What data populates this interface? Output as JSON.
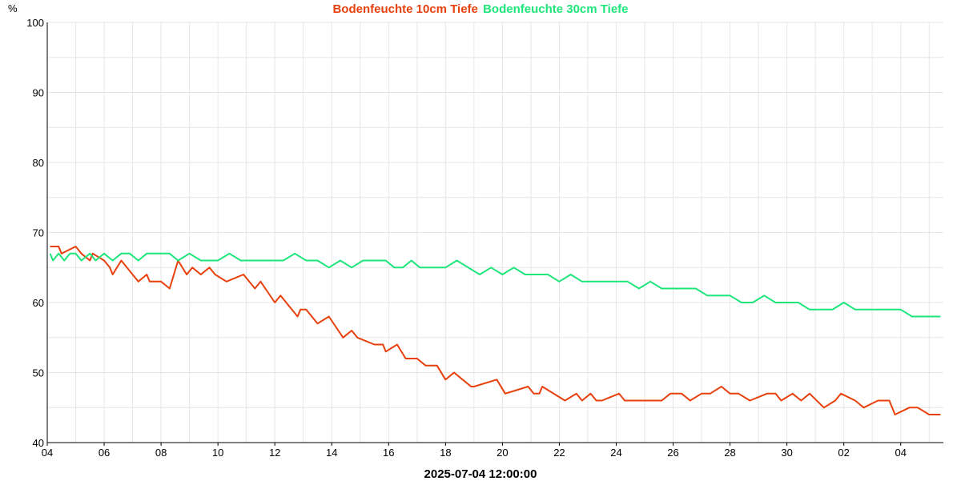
{
  "chart_data": {
    "type": "line",
    "y_unit": "%",
    "ylim": [
      40,
      100
    ],
    "yticks": [
      40,
      50,
      60,
      70,
      80,
      90,
      100
    ],
    "xlim": [
      0,
      31.5
    ],
    "x_tick_labels": [
      "04",
      "06",
      "08",
      "10",
      "12",
      "14",
      "16",
      "18",
      "20",
      "22",
      "24",
      "26",
      "28",
      "30",
      "02",
      "04"
    ],
    "x_axis_title": "2025-07-04 12:00:00",
    "grid": true,
    "legend_position": "top-center",
    "series": [
      {
        "name": "Bodenfeuchte 10cm Tiefe",
        "color": "#e8400c",
        "x": [
          0.1,
          0.4,
          0.5,
          1.0,
          1.2,
          1.5,
          1.6,
          2.0,
          2.2,
          2.3,
          2.6,
          3.2,
          3.5,
          3.6,
          4.0,
          4.3,
          4.6,
          4.9,
          5.1,
          5.4,
          5.7,
          5.9,
          6.3,
          6.9,
          7.1,
          7.3,
          7.5,
          8.0,
          8.2,
          8.8,
          8.9,
          9.1,
          9.5,
          9.9,
          10.4,
          10.7,
          10.9,
          11.5,
          11.8,
          11.9,
          12.3,
          12.6,
          13.0,
          13.3,
          13.7,
          14.0,
          14.3,
          14.6,
          14.9,
          15.0,
          15.8,
          16.1,
          16.9,
          17.1,
          17.3,
          17.4,
          18.2,
          18.6,
          18.8,
          19.1,
          19.3,
          19.5,
          20.1,
          20.3,
          21.1,
          21.6,
          21.9,
          22.3,
          22.6,
          23.0,
          23.3,
          23.7,
          24.0,
          24.3,
          24.7,
          25.3,
          25.6,
          25.8,
          26.2,
          26.5,
          26.8,
          27.3,
          27.7,
          27.9,
          28.4,
          28.7,
          29.2,
          29.6,
          29.8,
          30.3,
          30.6,
          31.0,
          31.4
        ],
        "values": [
          68,
          68,
          67,
          68,
          67,
          66,
          67,
          66,
          65,
          64,
          66,
          63,
          64,
          63,
          63,
          62,
          66,
          64,
          65,
          64,
          65,
          64,
          63,
          64,
          63,
          62,
          63,
          60,
          61,
          58,
          59,
          59,
          57,
          58,
          55,
          56,
          55,
          54,
          54,
          53,
          54,
          52,
          52,
          51,
          51,
          49,
          50,
          49,
          48,
          48,
          49,
          47,
          48,
          47,
          47,
          48,
          46,
          47,
          46,
          47,
          46,
          46,
          47,
          46,
          46,
          46,
          47,
          47,
          46,
          47,
          47,
          48,
          47,
          47,
          46,
          47,
          47,
          46,
          47,
          46,
          47,
          45,
          46,
          47,
          46,
          45,
          46,
          46,
          44,
          45,
          45,
          44,
          44
        ]
      },
      {
        "name": "Bodenfeuchte 30cm Tiefe",
        "color": "#1ee57a",
        "x": [
          0.1,
          0.2,
          0.4,
          0.6,
          0.8,
          1.0,
          1.2,
          1.5,
          1.7,
          2.0,
          2.3,
          2.6,
          2.9,
          3.2,
          3.5,
          3.9,
          4.3,
          4.6,
          5.0,
          5.4,
          5.7,
          6.0,
          6.4,
          6.8,
          7.1,
          7.5,
          7.9,
          8.3,
          8.7,
          9.1,
          9.5,
          9.9,
          10.3,
          10.7,
          11.1,
          11.5,
          11.9,
          12.2,
          12.5,
          12.8,
          13.1,
          13.4,
          13.7,
          14.0,
          14.4,
          14.8,
          15.2,
          15.6,
          16.0,
          16.4,
          16.8,
          17.2,
          17.6,
          18.0,
          18.4,
          18.8,
          19.2,
          19.6,
          20.0,
          20.4,
          20.8,
          21.2,
          21.6,
          22.0,
          22.4,
          22.8,
          23.2,
          23.6,
          24.0,
          24.4,
          24.8,
          25.2,
          25.6,
          26.0,
          26.4,
          26.8,
          27.2,
          27.6,
          28.0,
          28.4,
          28.8,
          29.2,
          29.6,
          30.0,
          30.4,
          30.8,
          31.2,
          31.4
        ],
        "values": [
          67,
          66,
          67,
          66,
          67,
          67,
          66,
          67,
          66,
          67,
          66,
          67,
          67,
          66,
          67,
          67,
          67,
          66,
          67,
          66,
          66,
          66,
          67,
          66,
          66,
          66,
          66,
          66,
          67,
          66,
          66,
          65,
          66,
          65,
          66,
          66,
          66,
          65,
          65,
          66,
          65,
          65,
          65,
          65,
          66,
          65,
          64,
          65,
          64,
          65,
          64,
          64,
          64,
          63,
          64,
          63,
          63,
          63,
          63,
          63,
          62,
          63,
          62,
          62,
          62,
          62,
          61,
          61,
          61,
          60,
          60,
          61,
          60,
          60,
          60,
          59,
          59,
          59,
          60,
          59,
          59,
          59,
          59,
          59,
          58,
          58,
          58,
          58
        ]
      }
    ]
  }
}
